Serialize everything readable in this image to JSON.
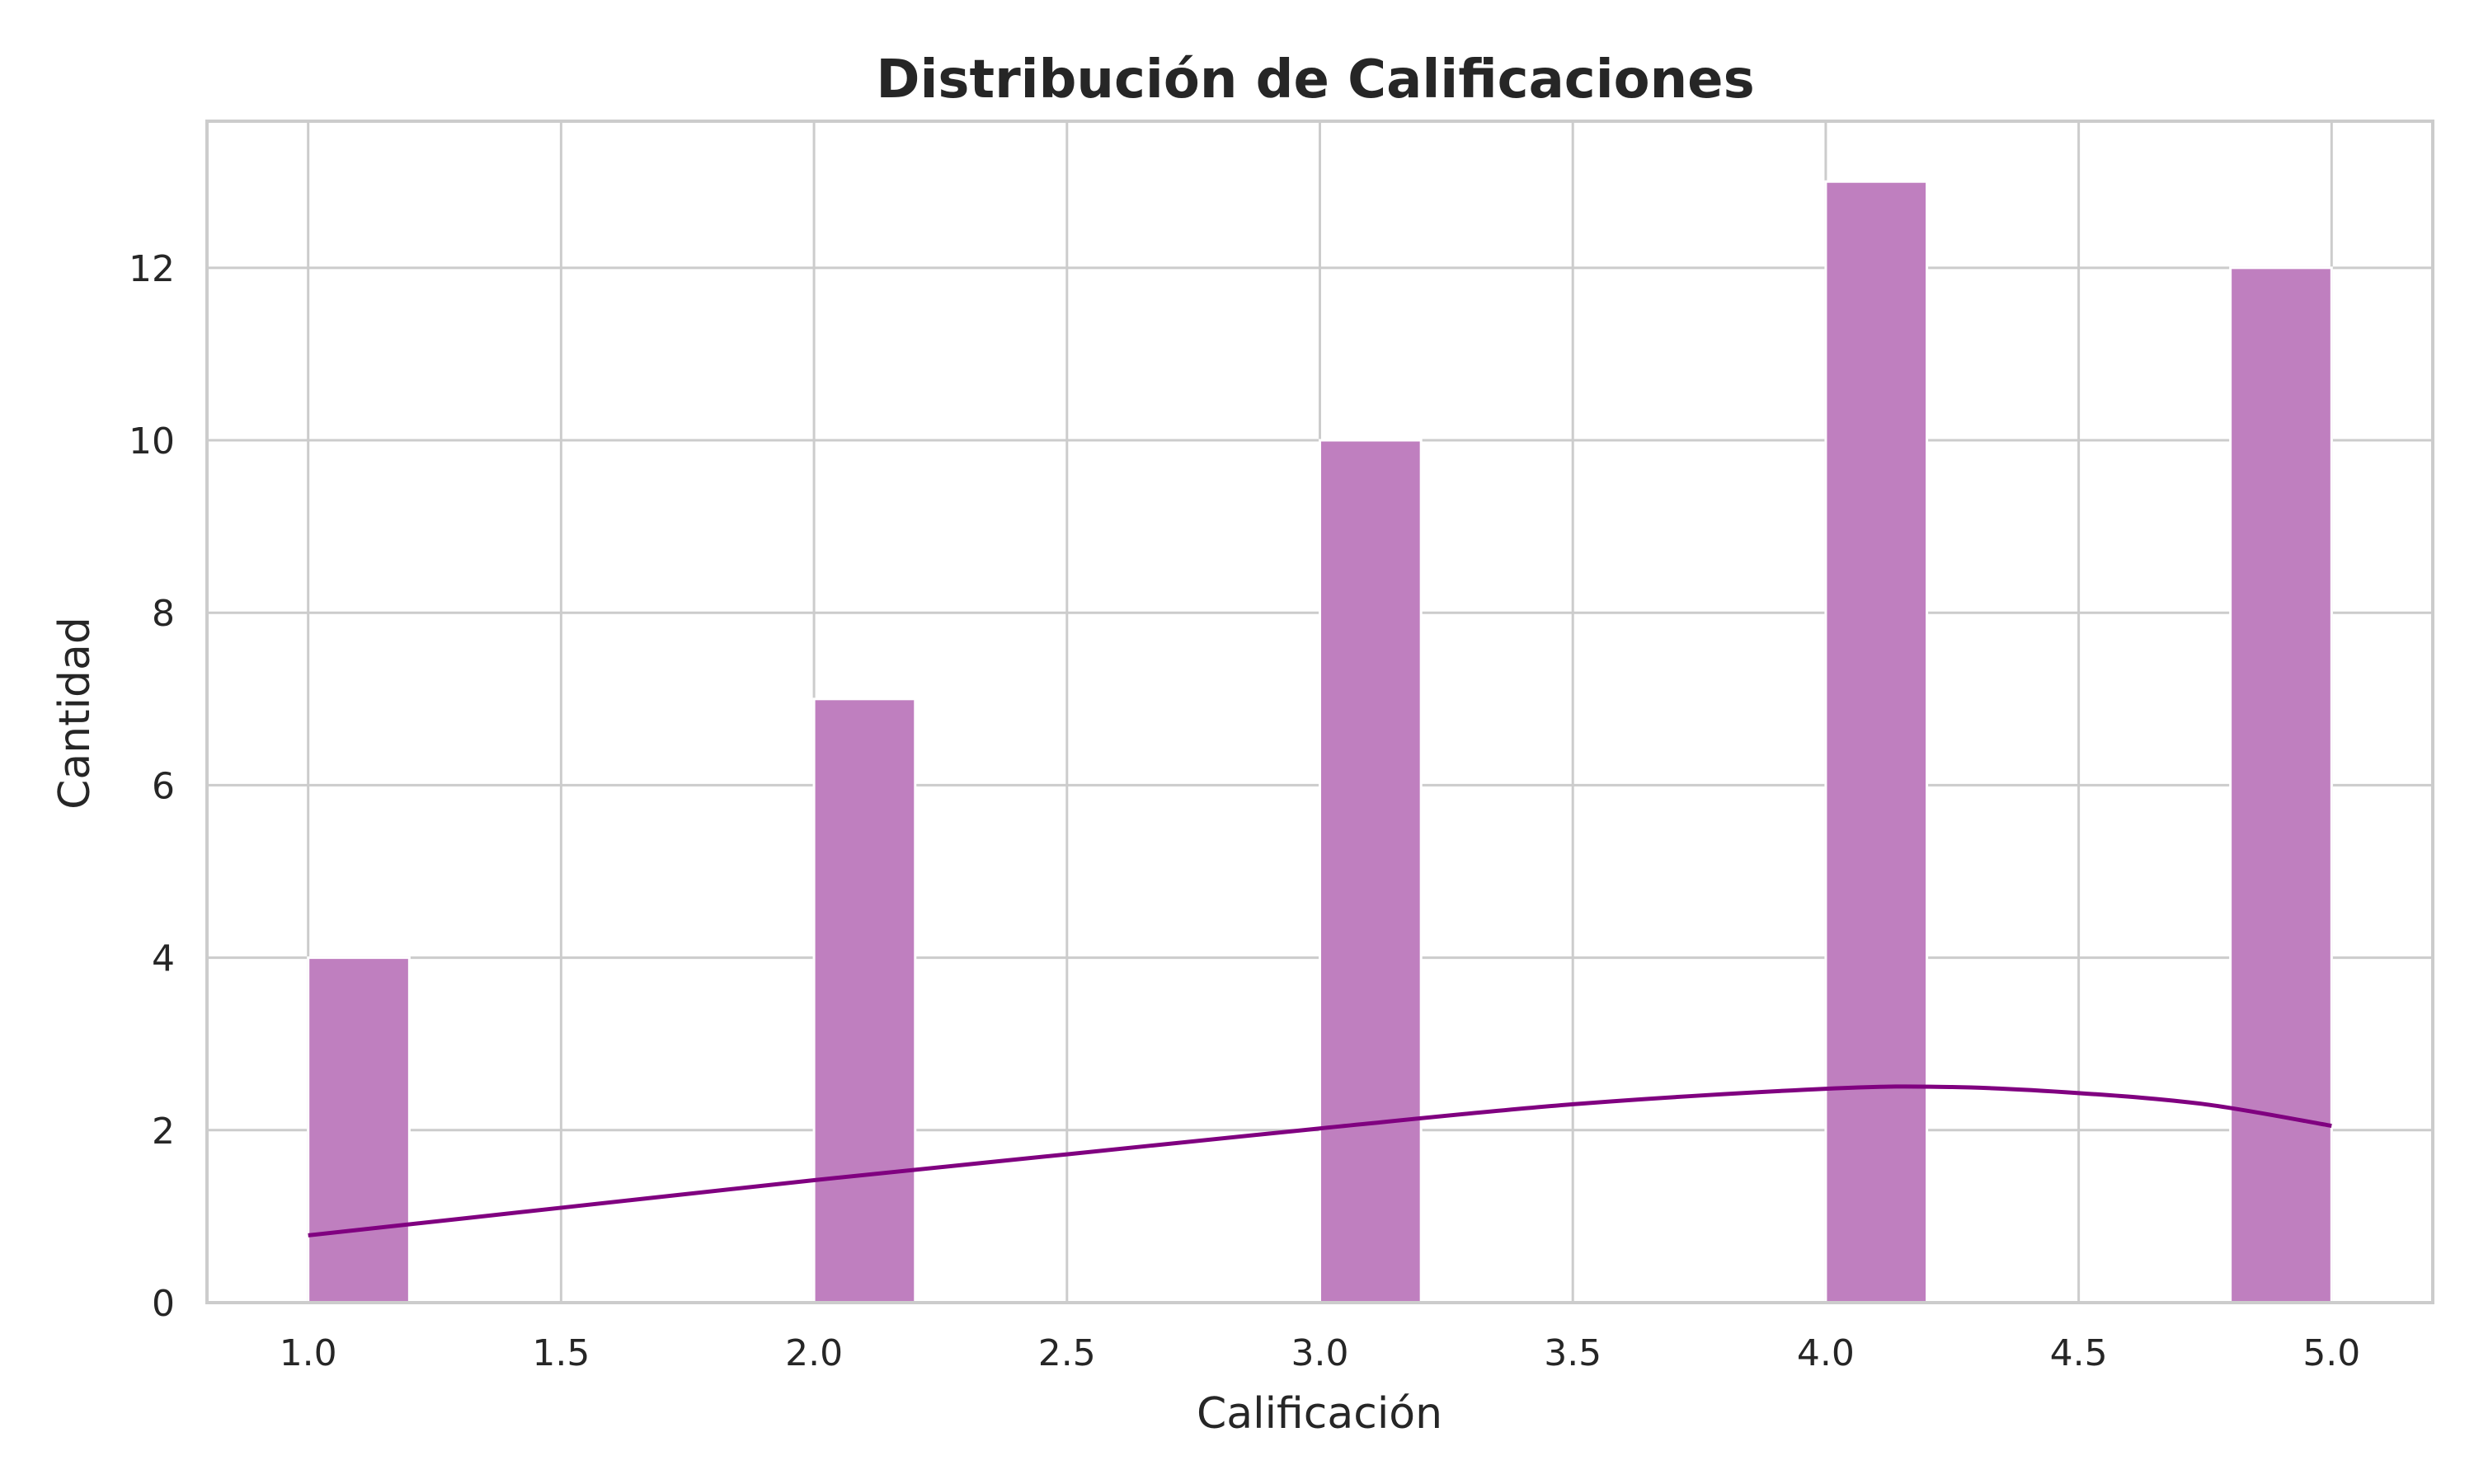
{
  "chart_data": {
    "type": "bar",
    "title": "Distribución de Calificaciones",
    "xlabel": "Calificación",
    "ylabel": "Cantidad",
    "xlim": [
      0.8,
      5.2
    ],
    "ylim": [
      0,
      13.7
    ],
    "xticks": [
      1.0,
      1.5,
      2.0,
      2.5,
      3.0,
      3.5,
      4.0,
      4.5,
      5.0
    ],
    "xtick_labels": [
      "1.0",
      "1.5",
      "2.0",
      "2.5",
      "3.0",
      "3.5",
      "4.0",
      "4.5",
      "5.0"
    ],
    "yticks": [
      0,
      2,
      4,
      6,
      8,
      10,
      12
    ],
    "ytick_labels": [
      "0",
      "2",
      "4",
      "6",
      "8",
      "10",
      "12"
    ],
    "grid": true,
    "bins": [
      {
        "x0": 1.0,
        "x1": 1.2,
        "count": 4
      },
      {
        "x0": 2.0,
        "x1": 2.2,
        "count": 7
      },
      {
        "x0": 3.0,
        "x1": 3.2,
        "count": 10
      },
      {
        "x0": 4.0,
        "x1": 4.2,
        "count": 13
      },
      {
        "x0": 4.8,
        "x1": 5.0,
        "count": 12
      }
    ],
    "kde": {
      "x": [
        1.0,
        1.5,
        2.0,
        2.5,
        3.0,
        3.5,
        4.0,
        4.25,
        4.5,
        4.75,
        5.0
      ],
      "y": [
        0.78,
        1.1,
        1.42,
        1.72,
        2.02,
        2.3,
        2.48,
        2.5,
        2.43,
        2.3,
        2.05
      ]
    },
    "colors": {
      "bar_fill": "#bf7fbf",
      "kde_line": "#800080"
    }
  }
}
